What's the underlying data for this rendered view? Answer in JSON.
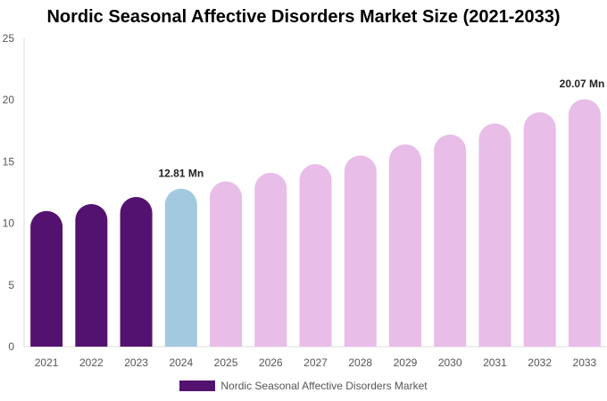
{
  "chart_data": {
    "type": "bar",
    "title": "Nordic Seasonal Affective Disorders Market Size (2021-2033)",
    "categories": [
      "2021",
      "2022",
      "2023",
      "2024",
      "2025",
      "2026",
      "2027",
      "2028",
      "2029",
      "2030",
      "2031",
      "2032",
      "2033"
    ],
    "series": [
      {
        "name": "Nordic Seasonal Affective Disorders Market",
        "values": [
          11.0,
          11.56,
          12.14,
          12.81,
          13.4,
          14.1,
          14.8,
          15.5,
          16.4,
          17.2,
          18.1,
          19.0,
          20.07
        ]
      }
    ],
    "data_labels": {
      "2024": "12.81 Mn",
      "2033": "20.07 Mn"
    },
    "ylim": [
      0,
      25
    ],
    "yticks": [
      0,
      5,
      10,
      15,
      20,
      25
    ],
    "grid": false,
    "legend_position": "bottom",
    "colors": {
      "historical": "#541270",
      "base_year": "#a3c9df",
      "forecast": "#e8bde8"
    },
    "color_groups": [
      "historical",
      "historical",
      "historical",
      "base_year",
      "forecast",
      "forecast",
      "forecast",
      "forecast",
      "forecast",
      "forecast",
      "forecast",
      "forecast",
      "forecast"
    ]
  }
}
